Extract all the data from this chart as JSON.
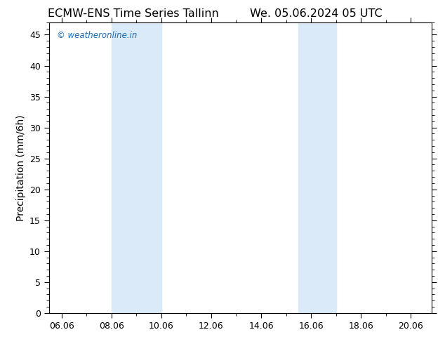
{
  "title_left": "ECMW-ENS Time Series Tallinn",
  "title_right": "We. 05.06.2024 05 UTC",
  "ylabel": "Precipitation (mm/6h)",
  "watermark": "© weatheronline.in",
  "watermark_color": "#1a6bb5",
  "xlim_start": 5.5,
  "xlim_end": 20.83,
  "ylim": [
    0,
    47
  ],
  "yticks": [
    0,
    5,
    10,
    15,
    20,
    25,
    30,
    35,
    40,
    45
  ],
  "xtick_labels": [
    "06.06",
    "08.06",
    "10.06",
    "12.06",
    "14.06",
    "16.06",
    "18.06",
    "20.06"
  ],
  "xtick_positions": [
    6,
    8,
    10,
    12,
    14,
    16,
    18,
    20
  ],
  "shaded_regions": [
    {
      "xmin": 8.0,
      "xmax": 10.0
    },
    {
      "xmin": 15.5,
      "xmax": 17.0
    }
  ],
  "shade_color": "#dbeaf8",
  "background_color": "#ffffff",
  "plot_bg_color": "#ffffff",
  "title_fontsize": 11.5,
  "tick_fontsize": 9,
  "ylabel_fontsize": 10,
  "watermark_fontsize": 8.5
}
